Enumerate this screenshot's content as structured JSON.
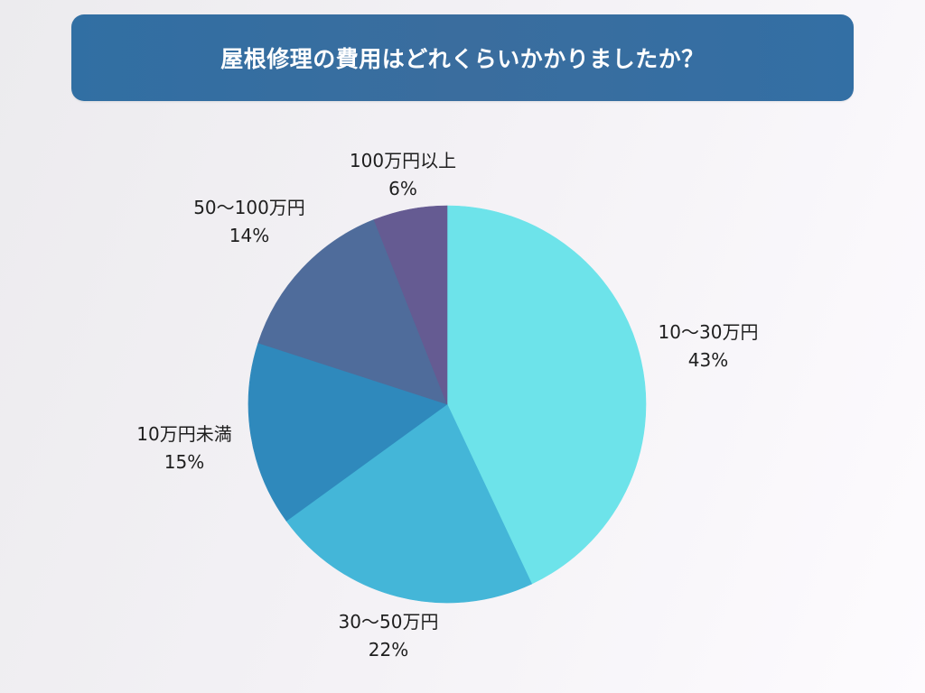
{
  "header": {
    "title": "屋根修理の費用はどれくらいかかりましたか？",
    "background_color": "#356fa2"
  },
  "chart_data": {
    "type": "pie",
    "title": "屋根修理の費用はどれくらいかかりましたか？",
    "start_angle": "12 o'clock, clockwise",
    "categories": [
      "10〜30万円",
      "30〜50万円",
      "10万円未満",
      "50〜100万円",
      "100万円以上"
    ],
    "values": [
      43,
      22,
      15,
      14,
      6
    ],
    "unit": "%",
    "colors": [
      "#6de3ea",
      "#44b6d8",
      "#2f89bc",
      "#4f6c9b",
      "#655b92"
    ],
    "legend": "none (labels placed outside slices)"
  },
  "labels": [
    {
      "name": "10〜30万円",
      "pct": "43%"
    },
    {
      "name": "30〜50万円",
      "pct": "22%"
    },
    {
      "name": "10万円未満",
      "pct": "15%"
    },
    {
      "name": "50〜100万円",
      "pct": "14%"
    },
    {
      "name": "100万円以上",
      "pct": "6%"
    }
  ]
}
